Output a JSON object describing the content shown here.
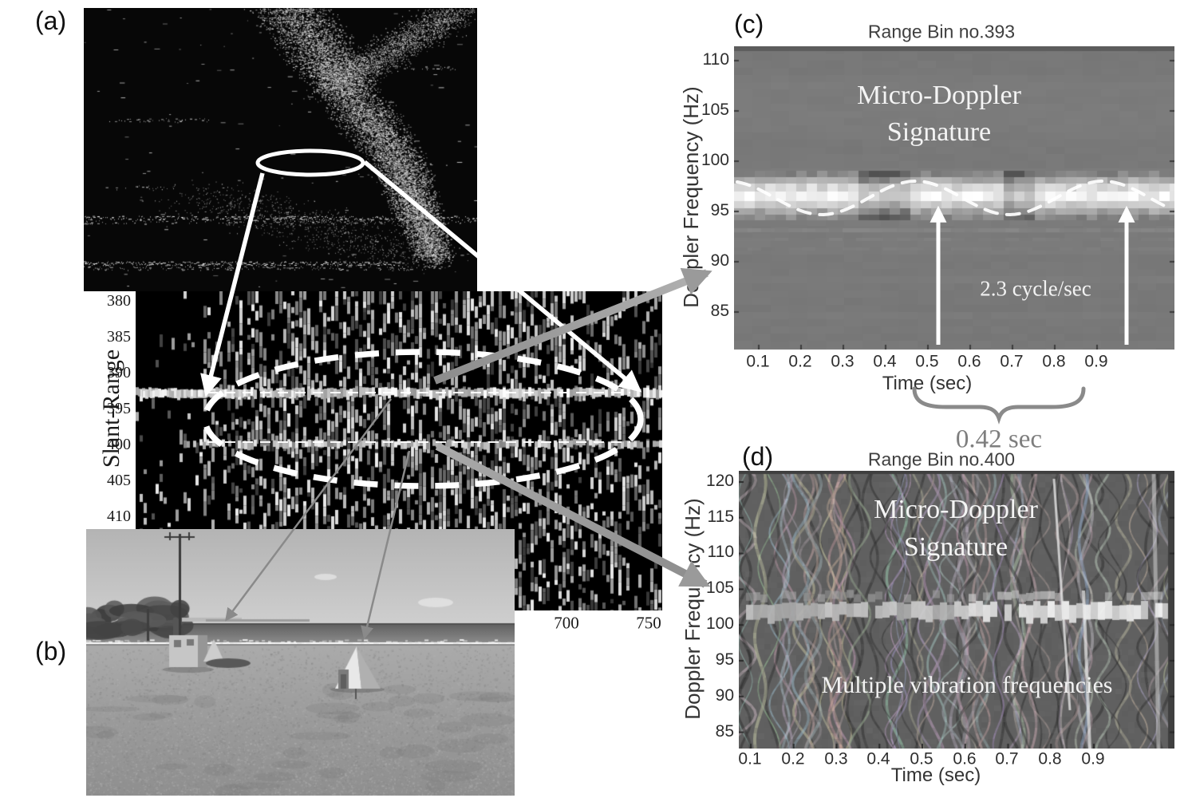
{
  "figure_labels": {
    "a": "(a)",
    "b": "(b)",
    "c": "(c)",
    "d": "(d)"
  },
  "interval_annotation": "0.42 sec",
  "middle_plot": {
    "ylabel": "Slant-Range",
    "yticks": [
      "380",
      "385",
      "390",
      "395",
      "400",
      "405",
      "410"
    ],
    "xticks": [
      "700",
      "750"
    ]
  },
  "panel_c": {
    "title": "Range Bin no.393",
    "ylabel": "Doppler Frequency (Hz)",
    "xlabel": "Time (sec)",
    "yticks": [
      "110",
      "105",
      "100",
      "95",
      "90",
      "85"
    ],
    "xticks": [
      "0.1",
      "0.2",
      "0.3",
      "0.4",
      "0.5",
      "0.6",
      "0.7",
      "0.8",
      "0.9"
    ],
    "signature_line1": "Micro-Doppler",
    "signature_line2": "Signature",
    "cycle_label": "2.3 cycle/sec"
  },
  "panel_d": {
    "title": "Range Bin no.400",
    "ylabel": "Doppler Frequency (Hz)",
    "xlabel": "Time (sec)",
    "yticks": [
      "120",
      "115",
      "110",
      "105",
      "100",
      "95",
      "90",
      "85"
    ],
    "xticks": [
      "0.1",
      "0.2",
      "0.3",
      "0.4",
      "0.5",
      "0.6",
      "0.7",
      "0.8",
      "0.9"
    ],
    "signature_line1": "Micro-Doppler",
    "signature_line2": "Signature",
    "vibration_label": "Multiple vibration frequencies"
  },
  "colors": {
    "annotation_white": "#ffffff",
    "annotation_gray": "#8f8f8f",
    "tick_text": "#1a1a1a",
    "title_text": "#3f3f3f"
  },
  "chart_data": [
    {
      "type": "heatmap",
      "panel": "(a)",
      "description": "Grayscale radar intensity image with bright speckled diagonal ridge and horizontal clutter lines",
      "annotations": [
        "solid white ellipse marking region of interest",
        "two white arrows pointing down to the zoomed slant-range map"
      ]
    },
    {
      "type": "heatmap",
      "panel": "middle",
      "description": "Zoomed slant-range vs pulse-number map of the ellipse region in (a)",
      "ylabel": "Slant-Range",
      "yticks": [
        380,
        385,
        390,
        395,
        400,
        405,
        410
      ],
      "xticks": [
        700,
        750
      ],
      "annotations": [
        "large white dashed ellipse around vibrating-target returns",
        "thin white dashed horizontal lines at range bins 393 and 400",
        "thin gray arrows pointing to the radar box and corner reflector in photo (b)",
        "thick gray arrows pointing to spectrograms (c) and (d)"
      ]
    },
    {
      "type": "heatmap",
      "panel": "(c)",
      "title": "Range Bin no.393",
      "xlabel": "Time (sec)",
      "ylabel": "Doppler Frequency (Hz)",
      "xticks": [
        0.1,
        0.2,
        0.3,
        0.4,
        0.5,
        0.6,
        0.7,
        0.8,
        0.9
      ],
      "yticks": [
        85,
        90,
        95,
        100,
        105,
        110
      ],
      "ylim": [
        82,
        111
      ],
      "features": {
        "signature_band_hz": [
          94,
          98
        ],
        "vibration_rate": "2.3 cycle/sec",
        "marked_period_sec": 0.42,
        "annotations": [
          "Micro-Doppler Signature label",
          "white dashed sinusoid tracing the oscillating band",
          "two white vertical arrows one vibration period apart",
          "gray underbrace below time axis labeled 0.42 sec"
        ]
      }
    },
    {
      "type": "heatmap",
      "panel": "(d)",
      "title": "Range Bin no.400",
      "xlabel": "Time (sec)",
      "ylabel": "Doppler Frequency (Hz)",
      "xticks": [
        0.1,
        0.2,
        0.3,
        0.4,
        0.5,
        0.6,
        0.7,
        0.8,
        0.9
      ],
      "yticks": [
        85,
        90,
        95,
        100,
        105,
        110,
        115,
        120
      ],
      "ylim": [
        83,
        121
      ],
      "features": {
        "signature_band_hz": [
          100,
          103
        ],
        "note": "Multiple vibration frequencies",
        "annotations": [
          "Micro-Doppler Signature label",
          "braided multi-frequency texture"
        ]
      }
    }
  ]
}
